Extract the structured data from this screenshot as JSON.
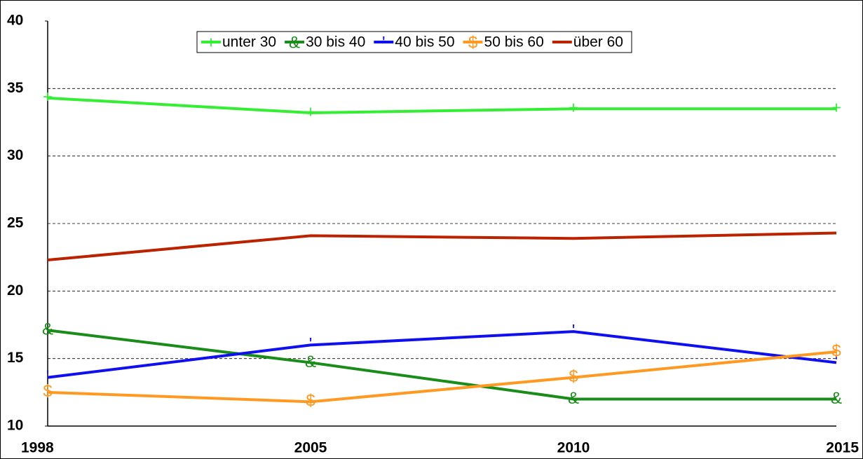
{
  "chart_data": {
    "type": "line",
    "categories": [
      "1998",
      "2005",
      "2010",
      "2015"
    ],
    "series": [
      {
        "name": "unter 30",
        "color": "#33ee33",
        "marker": "+",
        "values": [
          34.3,
          33.2,
          33.5,
          33.5
        ]
      },
      {
        "name": "30 bis 40",
        "color": "#1a8c1a",
        "marker": "&",
        "values": [
          17.1,
          14.7,
          12.0,
          12.0
        ]
      },
      {
        "name": "40 bis 50",
        "color": "#1010ee",
        "marker": "'",
        "values": [
          13.6,
          16.0,
          17.0,
          14.7
        ]
      },
      {
        "name": "50 bis 60",
        "color": "#ff9922",
        "marker": "$",
        "values": [
          12.5,
          11.8,
          13.6,
          15.5
        ]
      },
      {
        "name": "über 60",
        "color": "#bb2200",
        "values": [
          22.3,
          24.1,
          23.9,
          24.3
        ]
      }
    ],
    "ylim": [
      10,
      40
    ],
    "yticks": [
      10,
      15,
      20,
      25,
      30,
      35,
      40
    ],
    "grid": true,
    "legend": "top"
  }
}
